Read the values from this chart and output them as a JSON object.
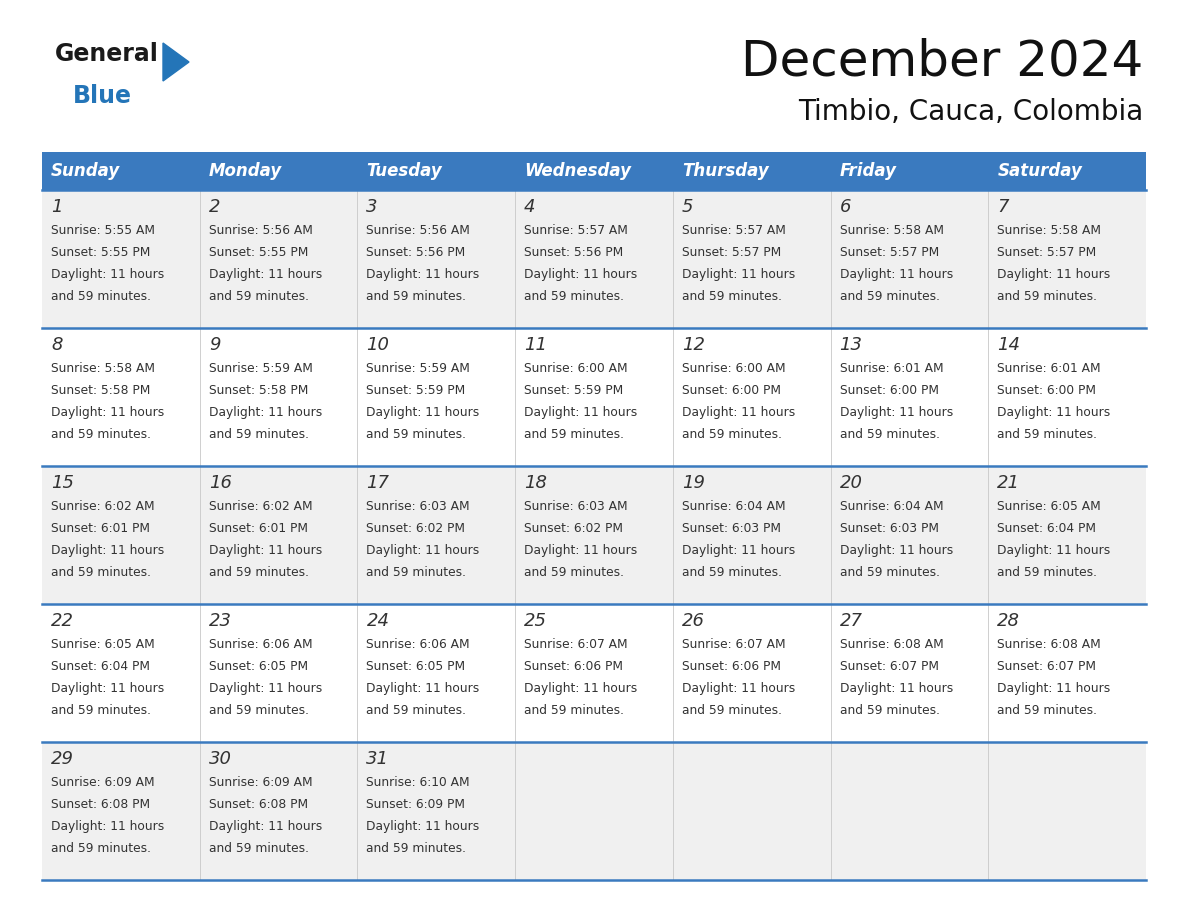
{
  "title": "December 2024",
  "subtitle": "Timbio, Cauca, Colombia",
  "header_color": "#3a7abf",
  "header_text_color": "#ffffff",
  "row_colors": [
    "#f0f0f0",
    "#ffffff",
    "#f0f0f0",
    "#ffffff",
    "#f0f0f0"
  ],
  "border_color": "#3a7abf",
  "text_color": "#333333",
  "day_names": [
    "Sunday",
    "Monday",
    "Tuesday",
    "Wednesday",
    "Thursday",
    "Friday",
    "Saturday"
  ],
  "days": [
    {
      "day": 1,
      "col": 0,
      "row": 0,
      "sunrise": "5:55 AM",
      "sunset": "5:55 PM"
    },
    {
      "day": 2,
      "col": 1,
      "row": 0,
      "sunrise": "5:56 AM",
      "sunset": "5:55 PM"
    },
    {
      "day": 3,
      "col": 2,
      "row": 0,
      "sunrise": "5:56 AM",
      "sunset": "5:56 PM"
    },
    {
      "day": 4,
      "col": 3,
      "row": 0,
      "sunrise": "5:57 AM",
      "sunset": "5:56 PM"
    },
    {
      "day": 5,
      "col": 4,
      "row": 0,
      "sunrise": "5:57 AM",
      "sunset": "5:57 PM"
    },
    {
      "day": 6,
      "col": 5,
      "row": 0,
      "sunrise": "5:58 AM",
      "sunset": "5:57 PM"
    },
    {
      "day": 7,
      "col": 6,
      "row": 0,
      "sunrise": "5:58 AM",
      "sunset": "5:57 PM"
    },
    {
      "day": 8,
      "col": 0,
      "row": 1,
      "sunrise": "5:58 AM",
      "sunset": "5:58 PM"
    },
    {
      "day": 9,
      "col": 1,
      "row": 1,
      "sunrise": "5:59 AM",
      "sunset": "5:58 PM"
    },
    {
      "day": 10,
      "col": 2,
      "row": 1,
      "sunrise": "5:59 AM",
      "sunset": "5:59 PM"
    },
    {
      "day": 11,
      "col": 3,
      "row": 1,
      "sunrise": "6:00 AM",
      "sunset": "5:59 PM"
    },
    {
      "day": 12,
      "col": 4,
      "row": 1,
      "sunrise": "6:00 AM",
      "sunset": "6:00 PM"
    },
    {
      "day": 13,
      "col": 5,
      "row": 1,
      "sunrise": "6:01 AM",
      "sunset": "6:00 PM"
    },
    {
      "day": 14,
      "col": 6,
      "row": 1,
      "sunrise": "6:01 AM",
      "sunset": "6:00 PM"
    },
    {
      "day": 15,
      "col": 0,
      "row": 2,
      "sunrise": "6:02 AM",
      "sunset": "6:01 PM"
    },
    {
      "day": 16,
      "col": 1,
      "row": 2,
      "sunrise": "6:02 AM",
      "sunset": "6:01 PM"
    },
    {
      "day": 17,
      "col": 2,
      "row": 2,
      "sunrise": "6:03 AM",
      "sunset": "6:02 PM"
    },
    {
      "day": 18,
      "col": 3,
      "row": 2,
      "sunrise": "6:03 AM",
      "sunset": "6:02 PM"
    },
    {
      "day": 19,
      "col": 4,
      "row": 2,
      "sunrise": "6:04 AM",
      "sunset": "6:03 PM"
    },
    {
      "day": 20,
      "col": 5,
      "row": 2,
      "sunrise": "6:04 AM",
      "sunset": "6:03 PM"
    },
    {
      "day": 21,
      "col": 6,
      "row": 2,
      "sunrise": "6:05 AM",
      "sunset": "6:04 PM"
    },
    {
      "day": 22,
      "col": 0,
      "row": 3,
      "sunrise": "6:05 AM",
      "sunset": "6:04 PM"
    },
    {
      "day": 23,
      "col": 1,
      "row": 3,
      "sunrise": "6:06 AM",
      "sunset": "6:05 PM"
    },
    {
      "day": 24,
      "col": 2,
      "row": 3,
      "sunrise": "6:06 AM",
      "sunset": "6:05 PM"
    },
    {
      "day": 25,
      "col": 3,
      "row": 3,
      "sunrise": "6:07 AM",
      "sunset": "6:06 PM"
    },
    {
      "day": 26,
      "col": 4,
      "row": 3,
      "sunrise": "6:07 AM",
      "sunset": "6:06 PM"
    },
    {
      "day": 27,
      "col": 5,
      "row": 3,
      "sunrise": "6:08 AM",
      "sunset": "6:07 PM"
    },
    {
      "day": 28,
      "col": 6,
      "row": 3,
      "sunrise": "6:08 AM",
      "sunset": "6:07 PM"
    },
    {
      "day": 29,
      "col": 0,
      "row": 4,
      "sunrise": "6:09 AM",
      "sunset": "6:08 PM"
    },
    {
      "day": 30,
      "col": 1,
      "row": 4,
      "sunrise": "6:09 AM",
      "sunset": "6:08 PM"
    },
    {
      "day": 31,
      "col": 2,
      "row": 4,
      "sunrise": "6:10 AM",
      "sunset": "6:09 PM"
    }
  ],
  "logo_general_color": "#1a1a1a",
  "logo_blue_color": "#2475b8",
  "logo_triangle_color": "#2475b8",
  "daylight_text": "Daylight: 11 hours",
  "daylight_text2": "and 59 minutes."
}
